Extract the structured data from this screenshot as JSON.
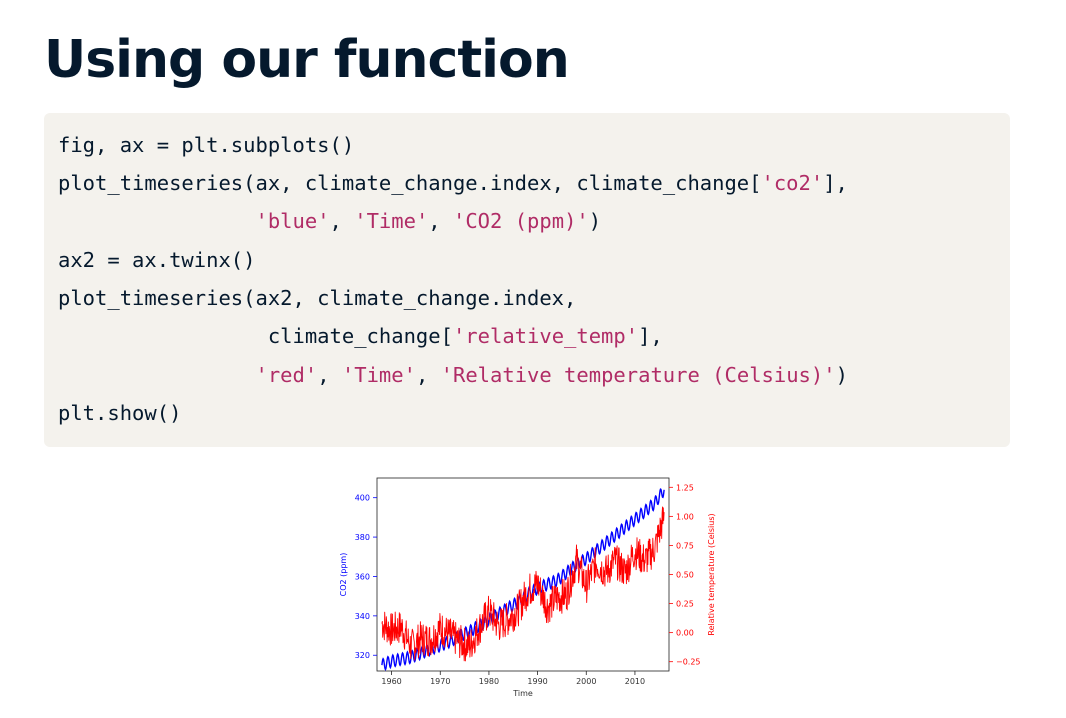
{
  "page": {
    "title": "Using our function"
  },
  "code": {
    "lines": [
      [
        {
          "t": "fig, ax = plt.subplots()"
        }
      ],
      [
        {
          "t": "plot_timeseries(ax, climate_change.index, climate_change["
        },
        {
          "t": "'co2'",
          "s": true
        },
        {
          "t": "],"
        }
      ],
      [
        {
          "t": "                "
        },
        {
          "t": "'blue'",
          "s": true
        },
        {
          "t": ", "
        },
        {
          "t": "'Time'",
          "s": true
        },
        {
          "t": ", "
        },
        {
          "t": "'CO2 (ppm)'",
          "s": true
        },
        {
          "t": ")"
        }
      ],
      [
        {
          "t": "ax2 = ax.twinx()"
        }
      ],
      [
        {
          "t": "plot_timeseries(ax2, climate_change.index,"
        }
      ],
      [
        {
          "t": "                 climate_change["
        },
        {
          "t": "'relative_temp'",
          "s": true
        },
        {
          "t": "],"
        }
      ],
      [
        {
          "t": "                "
        },
        {
          "t": "'red'",
          "s": true
        },
        {
          "t": ", "
        },
        {
          "t": "'Time'",
          "s": true
        },
        {
          "t": ", "
        },
        {
          "t": "'Relative temperature (Celsius)'",
          "s": true
        },
        {
          "t": ")"
        }
      ],
      [
        {
          "t": "plt.show()"
        }
      ]
    ]
  },
  "chart_data": {
    "type": "line",
    "xlabel": "Time",
    "ylabel_left": "CO2 (ppm)",
    "ylabel_right": "Relative temperature (Celsius)",
    "xlim": [
      1957,
      2017
    ],
    "ylim_left": [
      312,
      410
    ],
    "ylim_right": [
      -0.33,
      1.33
    ],
    "xticks": [
      1960,
      1970,
      1980,
      1990,
      2000,
      2010
    ],
    "yticks_left": [
      320,
      340,
      360,
      380,
      400
    ],
    "ytick_labels_left": [
      "320",
      "340",
      "360",
      "380",
      "400"
    ],
    "yticks_right": [
      -0.25,
      0,
      0.25,
      0.5,
      0.75,
      1.0,
      1.25
    ],
    "ytick_labels_right": [
      "−0.25",
      "0.00",
      "0.25",
      "0.50",
      "0.75",
      "1.00",
      "1.25"
    ],
    "colors": {
      "co2": "#0000ff",
      "temp": "#ff0000"
    },
    "series": [
      {
        "axis": "left",
        "x": [
          1958,
          1960,
          1962,
          1964,
          1966,
          1968,
          1970,
          1972,
          1974,
          1976,
          1978,
          1980,
          1982,
          1984,
          1986,
          1988,
          1990,
          1992,
          1994,
          1996,
          1998,
          2000,
          2002,
          2004,
          2006,
          2008,
          2010,
          2012,
          2014,
          2016
        ],
        "values": [
          315,
          317,
          318,
          319,
          321,
          323,
          325,
          327,
          330,
          332,
          335,
          338,
          341,
          344,
          347,
          351,
          354,
          356,
          358,
          362,
          366,
          369,
          373,
          377,
          381,
          385,
          389,
          393,
          397,
          404
        ]
      },
      {
        "axis": "right",
        "x": [
          1958,
          1960,
          1962,
          1964,
          1966,
          1968,
          1970,
          1972,
          1974,
          1976,
          1978,
          1980,
          1982,
          1984,
          1986,
          1988,
          1990,
          1992,
          1994,
          1996,
          1998,
          2000,
          2002,
          2004,
          2006,
          2008,
          2010,
          2012,
          2014,
          2016
        ],
        "values": [
          0.08,
          0.02,
          0.05,
          -0.12,
          -0.05,
          -0.06,
          0.04,
          -0.02,
          -0.08,
          -0.12,
          0.04,
          0.18,
          0.06,
          0.12,
          0.2,
          0.36,
          0.42,
          0.22,
          0.3,
          0.33,
          0.62,
          0.4,
          0.6,
          0.52,
          0.62,
          0.52,
          0.7,
          0.62,
          0.72,
          1.0
        ]
      }
    ]
  }
}
